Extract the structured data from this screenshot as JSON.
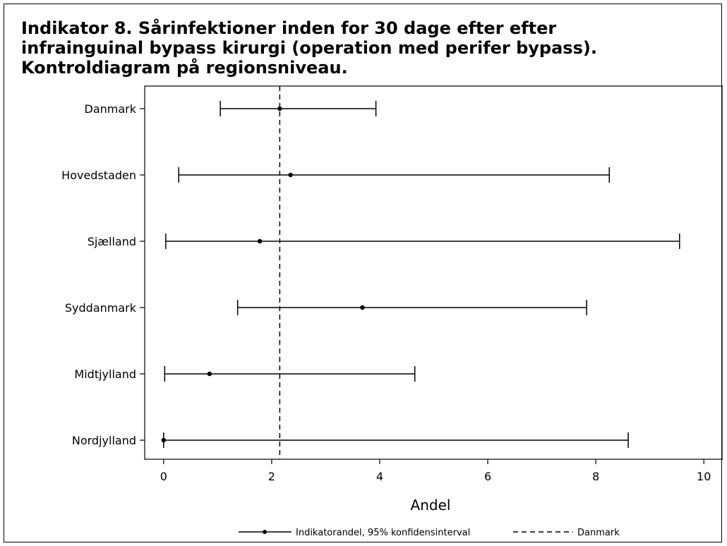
{
  "chart_data": {
    "type": "forest",
    "title_lines": [
      "Indikator 8. Sårinfektioner inden for 30 dage efter efter",
      "infrainguinal bypass kirurgi (operation med perifer bypass).",
      "Kontroldiagram på regionsniveau."
    ],
    "xlabel": "Andel",
    "ylabel": "",
    "xlim": [
      -0.35,
      10.35
    ],
    "xticks": [
      0,
      2,
      4,
      6,
      8,
      10
    ],
    "grid": false,
    "reference_line": {
      "name": "Danmark",
      "x": 2.15,
      "style": "dashed"
    },
    "categories": [
      "Danmark",
      "Hovedstaden",
      "Sjælland",
      "Syddanmark",
      "Midtjylland",
      "Nordjylland"
    ],
    "series": [
      {
        "name": "Indikatorandel, 95% konfidensinterval",
        "values": [
          2.15,
          2.35,
          1.78,
          3.68,
          0.85,
          0.0
        ],
        "lower": [
          1.05,
          0.28,
          0.04,
          1.37,
          0.02,
          0.0
        ],
        "upper": [
          3.93,
          8.25,
          9.55,
          7.83,
          4.65,
          8.6
        ]
      }
    ],
    "legend": {
      "position": "bottom",
      "items": [
        {
          "label": "Indikatorandel, 95% konfidensinterval",
          "symbol": "line-dot"
        },
        {
          "label": "Danmark",
          "symbol": "dashed-line"
        }
      ]
    },
    "colors": {
      "ink": "#000000",
      "background": "#ffffff"
    }
  }
}
